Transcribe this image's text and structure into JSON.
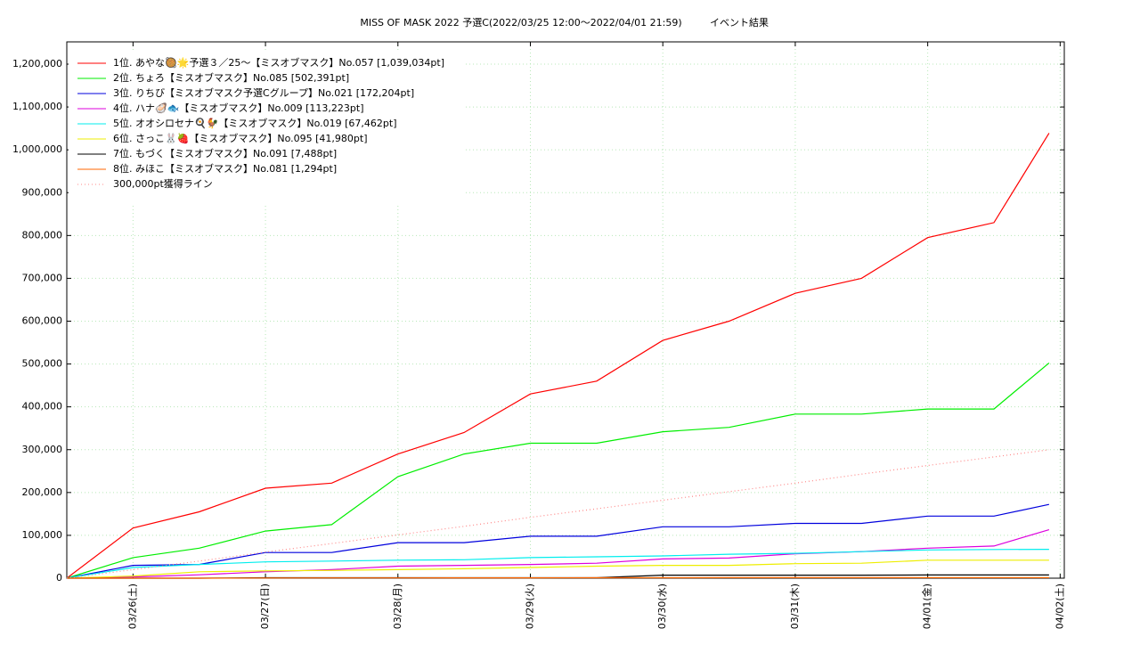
{
  "chart_data": {
    "type": "line",
    "title": "MISS OF MASK 2022 予選C(2022/03/25 12:00～2022/04/01 21:59)",
    "subtitle": "イベント結果",
    "x": [
      "2022/03/25 12:00",
      "2022/03/26 00:00",
      "2022/03/26 12:00",
      "2022/03/27 00:00",
      "2022/03/27 12:00",
      "2022/03/28 00:00",
      "2022/03/28 12:00",
      "2022/03/29 00:00",
      "2022/03/29 12:00",
      "2022/03/30 00:00",
      "2022/03/30 12:00",
      "2022/03/31 00:00",
      "2022/03/31 12:00",
      "2022/04/01 00:00",
      "2022/04/01 12:00",
      "2022/04/01 21:59"
    ],
    "xlim": [
      "2022/03/25 12:00",
      "2022/04/02 00:45"
    ],
    "xticks": [
      {
        "value": "2022/03/26 00:00",
        "label": "03/26(土)"
      },
      {
        "value": "2022/03/27 00:00",
        "label": "03/27(日)"
      },
      {
        "value": "2022/03/28 00:00",
        "label": "03/28(月)"
      },
      {
        "value": "2022/03/29 00:00",
        "label": "03/29(火)"
      },
      {
        "value": "2022/03/30 00:00",
        "label": "03/30(水)"
      },
      {
        "value": "2022/03/31 00:00",
        "label": "03/31(木)"
      },
      {
        "value": "2022/04/01 00:00",
        "label": "04/01(金)"
      },
      {
        "value": "2022/04/02 00:00",
        "label": "04/02(土)"
      }
    ],
    "ylim": [
      0,
      1252000
    ],
    "yticks": [
      {
        "value": 0,
        "label": "0"
      },
      {
        "value": 100000,
        "label": "100,000"
      },
      {
        "value": 200000,
        "label": "200,000"
      },
      {
        "value": 300000,
        "label": "300,000"
      },
      {
        "value": 400000,
        "label": "400,000"
      },
      {
        "value": 500000,
        "label": "500,000"
      },
      {
        "value": 600000,
        "label": "600,000"
      },
      {
        "value": 700000,
        "label": "700,000"
      },
      {
        "value": 800000,
        "label": "800,000"
      },
      {
        "value": 900000,
        "label": "900,000"
      },
      {
        "value": 1000000,
        "label": "1,000,000"
      },
      {
        "value": 1100000,
        "label": "1,100,000"
      },
      {
        "value": 1200000,
        "label": "1,200,000"
      }
    ],
    "grid": true,
    "legend": "upper-left",
    "series": [
      {
        "name": "1位. あやな🥘🌟予選３／25〜【ミスオブマスク】No.057 [1,039,034pt]",
        "color": "#ff0000",
        "dashed": false,
        "values": [
          0,
          117000,
          155000,
          210000,
          222000,
          290000,
          340000,
          430000,
          460000,
          555000,
          600000,
          665000,
          700000,
          795000,
          830000,
          1039034
        ]
      },
      {
        "name": "2位. ちょろ【ミスオブマスク】No.085 [502,391pt]",
        "color": "#00ee00",
        "dashed": false,
        "values": [
          0,
          48000,
          70000,
          110000,
          125000,
          237000,
          290000,
          315000,
          315000,
          342000,
          352000,
          383000,
          383000,
          395000,
          395000,
          502391
        ]
      },
      {
        "name": "3位. りちび【ミスオブマスク予選Cグループ】No.021 [172,204pt]",
        "color": "#0000dd",
        "dashed": false,
        "values": [
          0,
          30000,
          32000,
          60000,
          60000,
          83000,
          83000,
          98000,
          98000,
          120000,
          120000,
          128000,
          128000,
          145000,
          145000,
          172204
        ]
      },
      {
        "name": "4位. ハナ🦪🐟【ミスオブマスク】No.009 [113,223pt]",
        "color": "#dd00dd",
        "dashed": false,
        "values": [
          0,
          3000,
          8000,
          15000,
          20000,
          28000,
          30000,
          32000,
          35000,
          45000,
          47000,
          57000,
          62000,
          70000,
          75000,
          113223
        ]
      },
      {
        "name": "5位. オオシロセナ🍳🐓【ミスオブマスク】No.019 [67,462pt]",
        "color": "#00eeee",
        "dashed": false,
        "values": [
          0,
          25000,
          32000,
          38000,
          40000,
          42000,
          43000,
          48000,
          50000,
          52000,
          56000,
          58000,
          62000,
          66000,
          67000,
          67462
        ]
      },
      {
        "name": "6位. さっこ🐰🍓【ミスオブマスク】No.095 [41,980pt]",
        "color": "#eeee00",
        "dashed": false,
        "values": [
          0,
          5000,
          15000,
          17000,
          18000,
          20000,
          22000,
          25000,
          28000,
          30000,
          30000,
          34000,
          35000,
          42000,
          42000,
          41980
        ]
      },
      {
        "name": "7位. もづく【ミスオブマスク】No.091 [7,488pt]",
        "color": "#000000",
        "dashed": false,
        "values": [
          0,
          0,
          0,
          1000,
          1000,
          1000,
          1000,
          1000,
          1000,
          7000,
          7000,
          7000,
          7000,
          7400,
          7400,
          7488
        ]
      },
      {
        "name": "8位. みほこ【ミスオブマスク】No.081 [1,294pt]",
        "color": "#ff6600",
        "dashed": false,
        "values": [
          0,
          0,
          0,
          500,
          600,
          700,
          800,
          900,
          1000,
          1100,
          1200,
          1250,
          1270,
          1290,
          1294,
          1294
        ]
      },
      {
        "name": "300,000pt獲得ライン",
        "color": "#ff8888",
        "dashed": true,
        "values": [
          0,
          20000,
          40000,
          61000,
          81000,
          101000,
          121000,
          142000,
          162000,
          182000,
          202000,
          222000,
          243000,
          263000,
          283000,
          300000
        ]
      }
    ]
  }
}
